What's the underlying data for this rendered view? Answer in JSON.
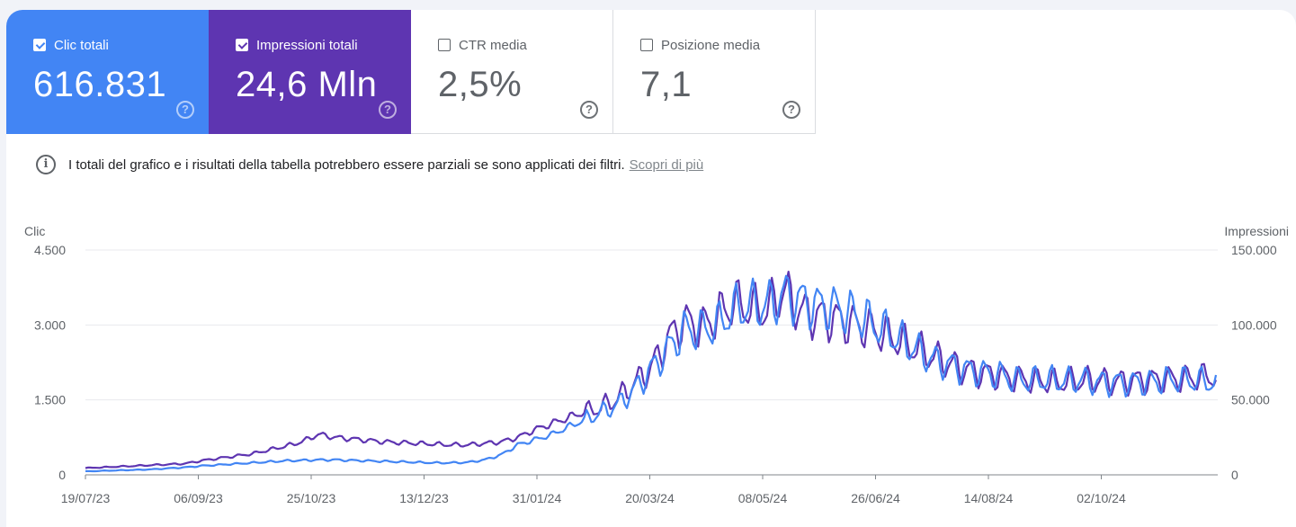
{
  "metrics": [
    {
      "label": "Clic totali",
      "value": "616.831",
      "checked": true,
      "color": "#4285f4"
    },
    {
      "label": "Impressioni totali",
      "value": "24,6 Mln",
      "checked": true,
      "color": "#5e35b1"
    },
    {
      "label": "CTR media",
      "value": "2,5%",
      "checked": false,
      "color": "#ffffff"
    },
    {
      "label": "Posizione media",
      "value": "7,1",
      "checked": false,
      "color": "#ffffff"
    }
  ],
  "info": {
    "text": "I totali del grafico e i risultati della tabella potrebbero essere parziali se sono applicati dei filtri.",
    "link": "Scopri di più"
  },
  "chart_data": {
    "type": "line",
    "ylabel_left": "Clic",
    "ylabel_right": "Impressioni",
    "y_left_ticks": [
      "4.500",
      "3.000",
      "1.500",
      "0"
    ],
    "y_right_ticks": [
      "150.000",
      "100.000",
      "50.000",
      "0"
    ],
    "ylim_left": [
      0,
      4500
    ],
    "ylim_right": [
      0,
      150000
    ],
    "x_tick_labels": [
      "19/07/23",
      "06/09/23",
      "25/10/23",
      "13/12/23",
      "31/01/24",
      "20/03/24",
      "08/05/24",
      "26/06/24",
      "14/08/24",
      "02/10/24"
    ],
    "x_range": [
      "2023-07-19",
      "2024-11-08"
    ],
    "x_sample_dates": [
      "19/07/23",
      "26/07/23",
      "02/08/23",
      "09/08/23",
      "16/08/23",
      "23/08/23",
      "30/08/23",
      "06/09/23",
      "13/09/23",
      "20/09/23",
      "27/09/23",
      "04/10/23",
      "11/10/23",
      "18/10/23",
      "25/10/23",
      "01/11/23",
      "08/11/23",
      "15/11/23",
      "22/11/23",
      "29/11/23",
      "06/12/23",
      "13/12/23",
      "20/12/23",
      "27/12/23",
      "03/01/24",
      "10/01/24",
      "17/01/24",
      "24/01/24",
      "31/01/24",
      "07/02/24",
      "14/02/24",
      "21/02/24",
      "28/02/24",
      "06/03/24",
      "13/03/24",
      "20/03/24",
      "27/03/24",
      "03/04/24",
      "10/04/24",
      "17/04/24",
      "24/04/24",
      "01/05/24",
      "08/05/24",
      "15/05/24",
      "22/05/24",
      "29/05/24",
      "05/06/24",
      "12/06/24",
      "19/06/24",
      "26/06/24",
      "03/07/24",
      "10/07/24",
      "17/07/24",
      "24/07/24",
      "31/07/24",
      "07/08/24",
      "14/08/24",
      "21/08/24",
      "28/08/24",
      "04/09/24",
      "11/09/24",
      "18/09/24",
      "25/09/24",
      "02/10/24",
      "09/10/24",
      "16/10/24",
      "23/10/24",
      "30/10/24",
      "06/11/24"
    ],
    "grid": true,
    "legend": "none",
    "series": [
      {
        "name": "Impressioni totali",
        "axis": "right",
        "color": "#5e35b1",
        "values": [
          4500,
          5000,
          5500,
          6000,
          6500,
          7000,
          7500,
          9500,
          11000,
          12500,
          14000,
          16500,
          19000,
          22000,
          27000,
          25000,
          24000,
          23000,
          22000,
          21500,
          21000,
          20500,
          20000,
          20000,
          21000,
          22000,
          25000,
          30000,
          34000,
          38000,
          42000,
          45000,
          51000,
          61000,
          71000,
          90000,
          103000,
          98000,
          106000,
          115000,
          111000,
          110000,
          123000,
          109000,
          106000,
          104000,
          101000,
          98000,
          94000,
          89000,
          84000,
          79000,
          74000,
          70000,
          68000,
          66000,
          64000,
          63000,
          62000,
          62000,
          63000,
          63000,
          62000,
          63000,
          63000,
          64000,
          64000,
          65000,
          66000
        ]
      },
      {
        "name": "Clic totali",
        "axis": "left",
        "color": "#4285f4",
        "values": [
          70,
          80,
          90,
          100,
          110,
          130,
          150,
          180,
          200,
          220,
          240,
          260,
          280,
          290,
          300,
          300,
          290,
          280,
          270,
          260,
          250,
          240,
          240,
          250,
          300,
          400,
          600,
          700,
          800,
          950,
          1100,
          1250,
          1400,
          1700,
          2100,
          2500,
          2900,
          2900,
          3000,
          3300,
          3400,
          3400,
          3600,
          3500,
          3400,
          3350,
          3250,
          3100,
          2900,
          2700,
          2500,
          2300,
          2200,
          2100,
          2050,
          2000,
          1900,
          1900,
          1900,
          1880,
          1900,
          1850,
          1850,
          1850,
          1850,
          1900,
          1900,
          1880,
          1850
        ]
      }
    ]
  }
}
